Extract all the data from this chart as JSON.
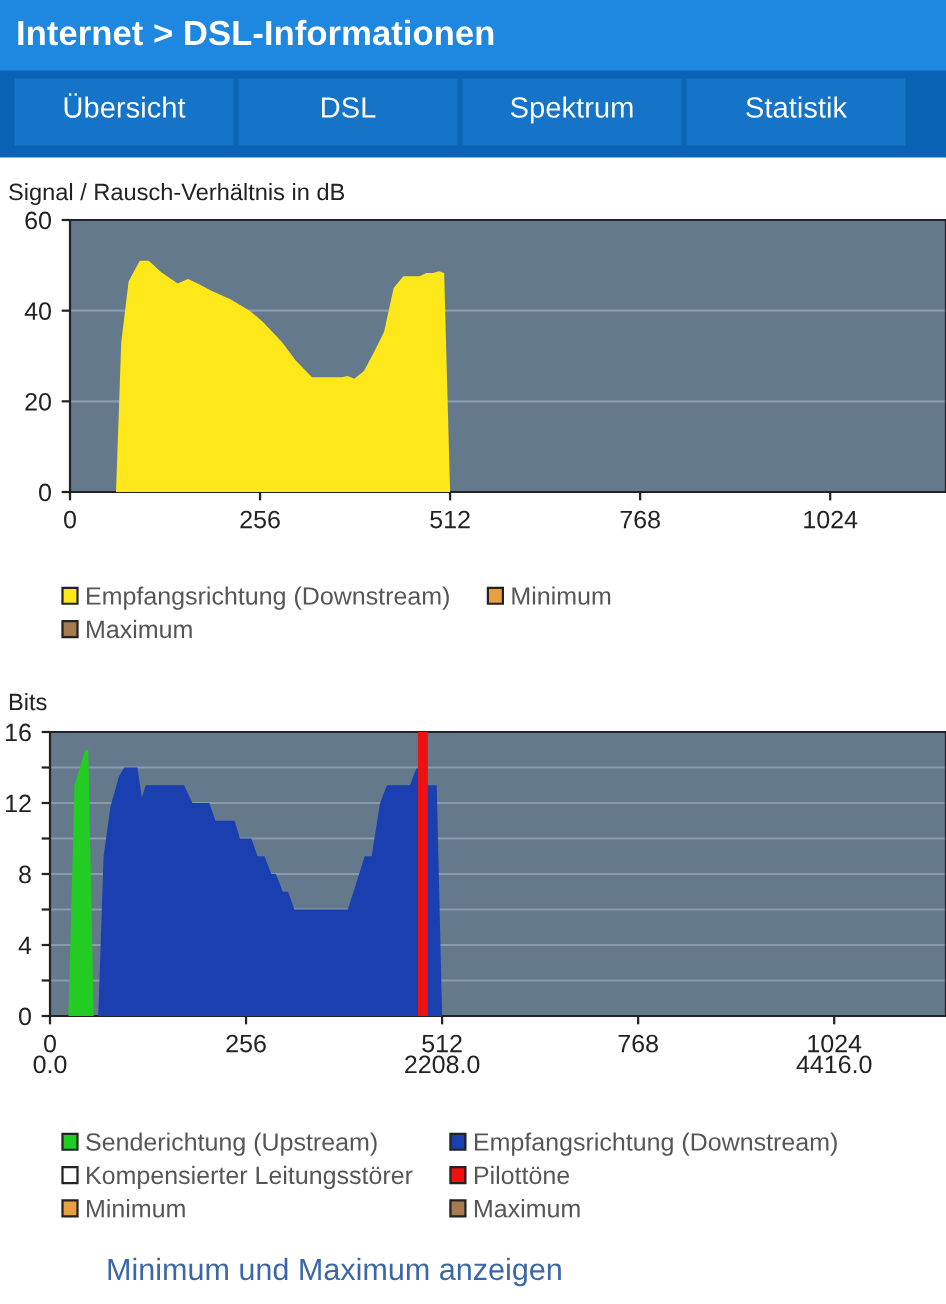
{
  "chart_data": [
    {
      "type": "other",
      "title": "Internet > DSL-Informationen",
      "annotations": [
        "Übersicht",
        "DSL",
        "Spektrum",
        "Statistik"
      ]
    },
    {
      "type": "area",
      "ylabel": "Signal / Rausch-Verhältnis in dB",
      "xlim": [
        0,
        1180
      ],
      "xticks": [
        0,
        256,
        512,
        768,
        1024
      ],
      "ylim": [
        0,
        60
      ],
      "yticks": [
        0,
        20,
        40,
        60
      ],
      "grid": "y",
      "legend": "bottom",
      "series": [
        {
          "name": "Empfangsrichtung (Downstream)",
          "color": "#ffe81a",
          "x": [
            62,
            69,
            79,
            94,
            106,
            123,
            145,
            159,
            172,
            189,
            216,
            242,
            260,
            286,
            304,
            326,
            366,
            374,
            383,
            396,
            410,
            423,
            436,
            449,
            471,
            480,
            489,
            497,
            504,
            512
          ],
          "values": [
            0,
            33,
            46.5,
            51,
            51,
            48.5,
            46,
            47,
            46,
            44.5,
            42.5,
            40,
            37.5,
            33,
            29,
            25.3,
            25.3,
            25.6,
            25,
            26.7,
            31,
            35.3,
            45,
            47.6,
            47.6,
            48.3,
            48.3,
            48.7,
            48.3,
            0
          ]
        },
        {
          "name": "Minimum",
          "color": "#e8a040"
        },
        {
          "name": "Maximum",
          "color": "#a87a50"
        }
      ]
    },
    {
      "type": "area",
      "ylabel": "Bits",
      "xlim": [
        0,
        1170
      ],
      "xticks": [
        0,
        256,
        512,
        768,
        1024
      ],
      "x2lim": [
        0,
        5045.6
      ],
      "x2ticks": [
        {
          "value": 0,
          "label": "0.0"
        },
        {
          "value": 2208,
          "label": "2208.0"
        },
        {
          "value": 4416,
          "label": "4416.0"
        }
      ],
      "ylim": [
        0,
        16
      ],
      "yticks": [
        0,
        {
          "value": 2,
          "label": null
        },
        4,
        {
          "value": 6,
          "label": null
        },
        8,
        {
          "value": 10,
          "label": null
        },
        12,
        {
          "value": 14,
          "label": null
        },
        16
      ],
      "grid": "y",
      "legend": "bottom",
      "annotations": [
        "Minimum und Maximum anzeigen"
      ],
      "series": [
        {
          "name": "Senderichtung (Upstream)",
          "color": "#22cc22",
          "x": [
            24,
            32,
            46,
            50,
            57
          ],
          "values": [
            0,
            13,
            15,
            15,
            0
          ]
        },
        {
          "name": "Empfangsrichtung (Downstream)",
          "color": "#1a3fb0",
          "x": [
            63,
            70,
            79,
            90,
            97,
            114,
            120,
            125,
            175,
            186,
            208,
            216,
            241,
            248,
            263,
            271,
            280,
            289,
            295,
            304,
            311,
            319,
            389,
            411,
            420,
            431,
            440,
            470,
            479,
            494,
            505,
            512
          ],
          "values": [
            0,
            9,
            11.8,
            13.5,
            14,
            14,
            12.3,
            13,
            13,
            12,
            12,
            11,
            11,
            10,
            10,
            9,
            9,
            8,
            8,
            7,
            7,
            6,
            6,
            9,
            9,
            12,
            13,
            13,
            14,
            13,
            13,
            0
          ]
        },
        {
          "name": "Kompensierter Leitungsstörer",
          "color": "#ffffff"
        },
        {
          "name": "Pilottöne",
          "color": "#ee1111",
          "type": "bar",
          "x": [
            487
          ],
          "values": [
            16
          ]
        },
        {
          "name": "Minimum",
          "color": "#e8a040"
        },
        {
          "name": "Maximum",
          "color": "#a87a50"
        }
      ]
    }
  ]
}
